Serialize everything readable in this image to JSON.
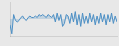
{
  "chart_data": {
    "type": "line",
    "values": [
      -2.0,
      -5.0,
      1.5,
      -0.5,
      -1.0,
      -0.5,
      0.5,
      1.0,
      0.0,
      -0.5,
      0.5,
      1.0,
      0.5,
      0.5,
      1.0,
      0.5,
      1.5,
      1.0,
      1.5,
      1.0,
      0.5,
      1.5,
      1.0,
      0.5,
      1.5,
      -1.0,
      2.0,
      -0.5,
      1.5,
      -2.5,
      -1.5,
      1.5,
      1.0,
      -1.5,
      2.0,
      -1.0,
      2.5,
      -2.0,
      1.5,
      -2.5,
      2.0,
      -1.5,
      1.0,
      -1.5,
      2.0,
      -1.0,
      1.5,
      -2.0,
      1.0,
      -1.5,
      2.0,
      -1.0,
      1.5,
      -2.0,
      1.5,
      -1.0,
      2.0,
      -1.5,
      1.0,
      -1.0
    ],
    "color": "#4d8fc4",
    "xlim": [
      0,
      59
    ],
    "ylim": [
      -5.75,
      5.75
    ],
    "grid": false,
    "tick_labels": false
  }
}
